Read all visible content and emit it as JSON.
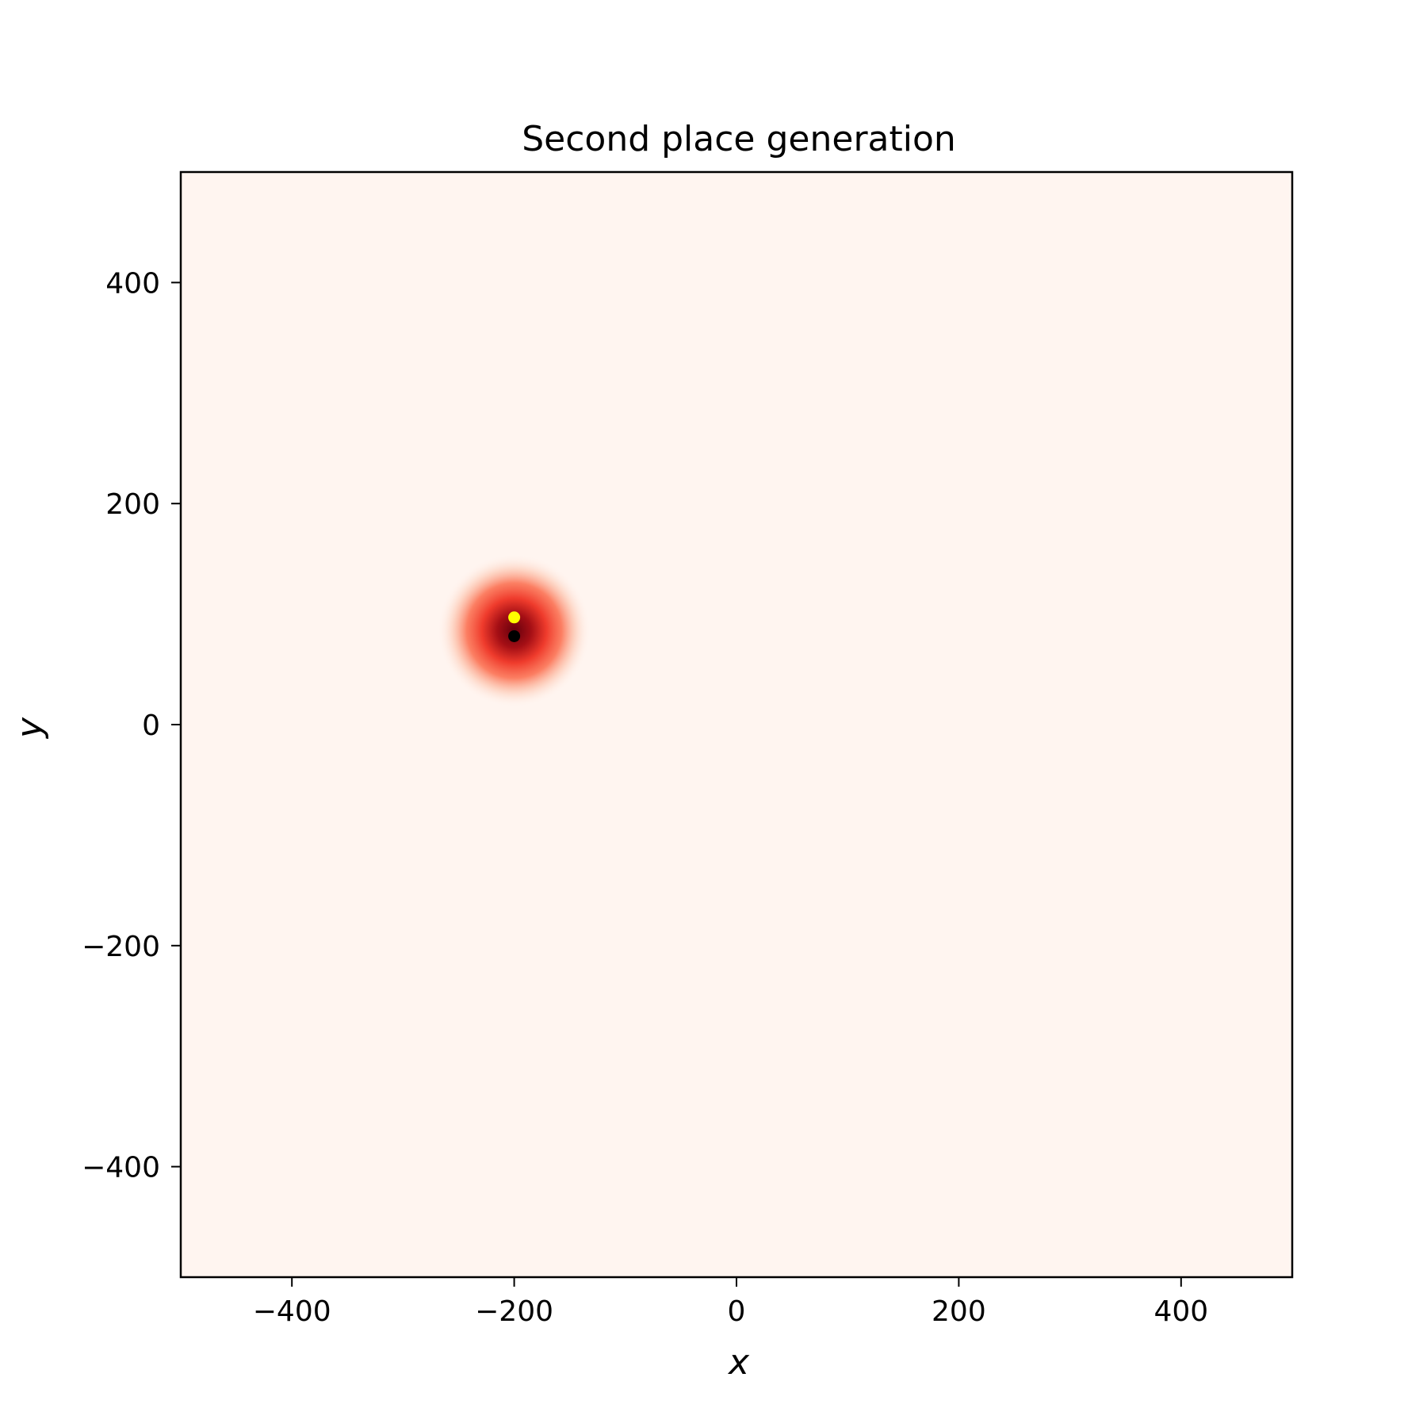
{
  "chart_data": {
    "type": "heatmap",
    "title": "Second place generation",
    "xlabel": "x",
    "ylabel": "y",
    "xlim": [
      -500,
      500
    ],
    "ylim": [
      -500,
      500
    ],
    "x_ticks": [
      -400,
      -200,
      0,
      200,
      400
    ],
    "y_ticks": [
      -400,
      -200,
      0,
      200,
      400
    ],
    "x_tick_labels": [
      "−400",
      "−200",
      "0",
      "200",
      "400"
    ],
    "y_tick_labels": [
      "−400",
      "−200",
      "0",
      "200",
      "400"
    ],
    "grid": false,
    "legend": "none",
    "colormap": "Reds",
    "colors": {
      "background": "#fff5f0",
      "low": "#fff5f0",
      "mid": "#ef3b2c",
      "high": "#67000d",
      "marker_black": "#000000",
      "marker_yellow": "#ffff00"
    },
    "density": {
      "center": [
        -200,
        85
      ],
      "sigma": 30,
      "peak": 1.0
    },
    "points": [
      {
        "x": -200,
        "y": 97,
        "color": "#ffff00"
      },
      {
        "x": -200,
        "y": 80,
        "color": "#000000"
      }
    ]
  }
}
